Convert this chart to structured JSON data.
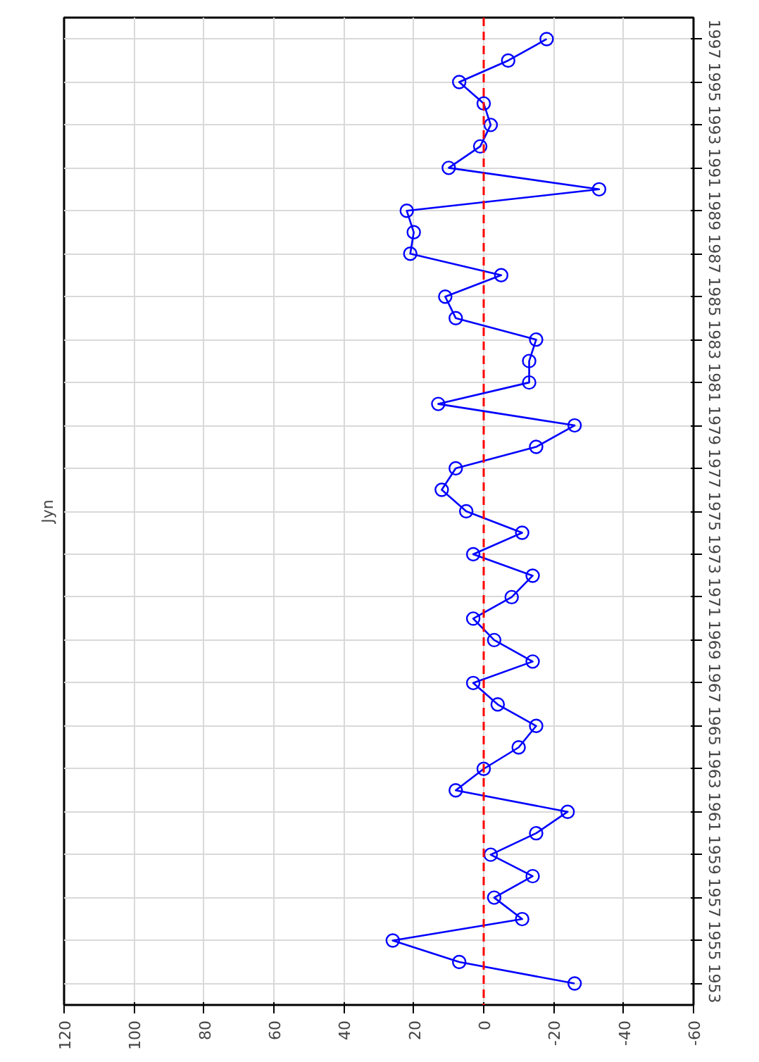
{
  "chart_data": {
    "type": "line",
    "title": "Jyn",
    "series": [
      {
        "color": "#0000ff",
        "x": [
          -26,
          7,
          26,
          -11,
          -3,
          -14,
          -2,
          -15,
          -24,
          8,
          0,
          -10,
          -15,
          -4,
          3,
          -14,
          -3,
          3,
          -8,
          -14,
          3,
          -11,
          5,
          12,
          8,
          -15,
          -26,
          13,
          -13,
          -13,
          -15,
          8,
          11,
          -5,
          21,
          20,
          22,
          -33,
          10,
          1,
          -2,
          0,
          7,
          -7,
          -18
        ],
        "values": [
          1953,
          1954,
          1955,
          1956,
          1957,
          1958,
          1959,
          1960,
          1961,
          1962,
          1963,
          1964,
          1965,
          1966,
          1967,
          1968,
          1969,
          1970,
          1971,
          1972,
          1973,
          1974,
          1975,
          1976,
          1977,
          1978,
          1979,
          1980,
          1981,
          1982,
          1983,
          1984,
          1985,
          1986,
          1987,
          1988,
          1989,
          1990,
          1991,
          1992,
          1993,
          1994,
          1995,
          1996,
          1997
        ]
      }
    ],
    "ylim": [
      1952,
      1998
    ],
    "yticks": [
      1953,
      1955,
      1957,
      1959,
      1961,
      1963,
      1965,
      1967,
      1969,
      1971,
      1973,
      1975,
      1977,
      1979,
      1981,
      1983,
      1985,
      1987,
      1989,
      1991,
      1993,
      1995,
      1997
    ],
    "xlim": [
      120,
      -60
    ],
    "xticks": [
      120,
      100,
      80,
      60,
      40,
      20,
      0,
      -20,
      -40,
      -60
    ],
    "ref_lines": [
      {
        "axis": "x",
        "value": 0,
        "color": "#ff0000",
        "line_style": "dashed"
      }
    ],
    "grid": true,
    "marker": "circle",
    "line_style": "solid"
  }
}
